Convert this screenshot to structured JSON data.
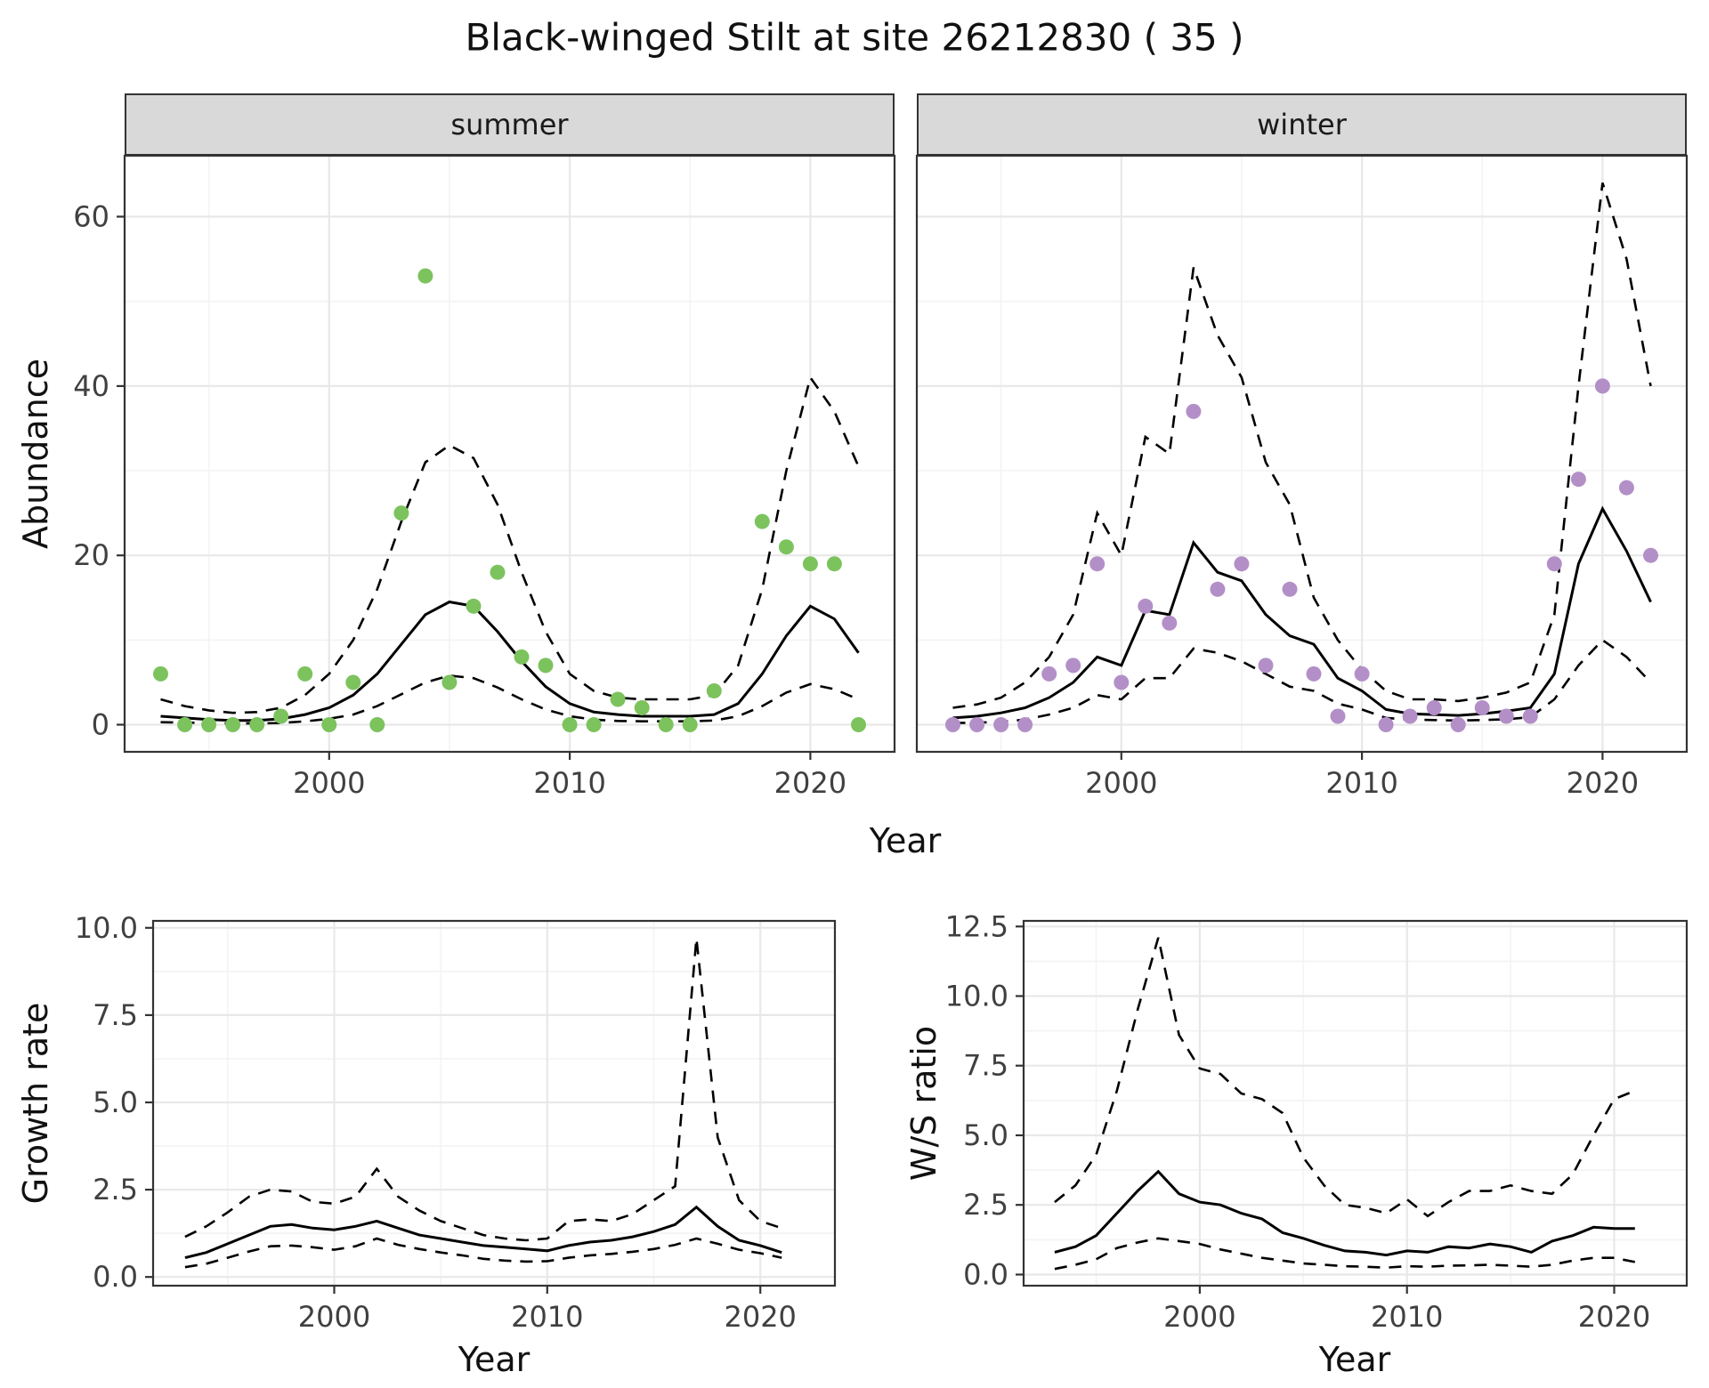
{
  "title": "Black-winged Stilt at site 26212830 ( 35 )",
  "colors": {
    "line": "#000000",
    "strip_bg": "#d9d9d9",
    "strip_border": "#333333",
    "panel_border": "#333333",
    "grid_major": "#e8e8e8",
    "grid_minor": "#f3f3f3",
    "tick_mark": "#333333",
    "tick_text": "#404040",
    "summer_point": "#7cc35e",
    "winter_point": "#b38fc8"
  },
  "chart_data": [
    {
      "id": "summer",
      "type": "scatter",
      "facet_label": "summer",
      "xlabel": "Year",
      "ylabel": "Abundance",
      "point_color": "#7cc35e",
      "xlim": [
        1991.5,
        2023.5
      ],
      "ylim": [
        -3.2,
        67.2
      ],
      "xticks": [
        2000,
        2010,
        2020
      ],
      "xtick_labels": [
        "2000",
        "2010",
        "2020"
      ],
      "xminor": [
        1995,
        2005,
        2015
      ],
      "yticks": [
        0,
        20,
        40,
        60
      ],
      "ytick_labels": [
        "0",
        "20",
        "40",
        "60"
      ],
      "yminor": [
        10,
        30,
        50
      ],
      "show_ytick_labels": true,
      "x": [
        1993,
        1994,
        1995,
        1996,
        1997,
        1998,
        1999,
        2000,
        2001,
        2002,
        2003,
        2004,
        2005,
        2006,
        2007,
        2008,
        2009,
        2010,
        2011,
        2012,
        2013,
        2014,
        2015,
        2016,
        2017,
        2018,
        2019,
        2020,
        2021,
        2022
      ],
      "points": [
        6,
        0,
        0,
        0,
        0,
        1,
        6,
        0,
        5,
        0,
        25,
        53,
        5,
        14,
        18,
        8,
        7,
        0,
        0,
        3,
        2,
        0,
        0,
        4,
        null,
        24,
        21,
        19,
        19,
        0
      ],
      "fit": [
        1.0,
        0.8,
        0.6,
        0.5,
        0.5,
        0.7,
        1.2,
        2.0,
        3.5,
        6.0,
        9.5,
        13.0,
        14.5,
        14.0,
        11.0,
        7.5,
        4.5,
        2.5,
        1.5,
        1.2,
        1.0,
        1.0,
        1.0,
        1.2,
        2.5,
        6.0,
        10.5,
        14.0,
        12.5,
        8.5
      ],
      "upper": [
        3.0,
        2.2,
        1.7,
        1.4,
        1.5,
        2.0,
        3.5,
        6.0,
        10.0,
        16.0,
        24.0,
        31.0,
        33.0,
        31.5,
        26.0,
        18.0,
        11.0,
        6.0,
        4.0,
        3.2,
        3.0,
        3.0,
        3.0,
        3.5,
        7.0,
        16.0,
        30.0,
        41.0,
        37.0,
        30.5
      ],
      "lower": [
        0.3,
        0.25,
        0.2,
        0.15,
        0.15,
        0.2,
        0.4,
        0.7,
        1.2,
        2.2,
        3.6,
        5.0,
        5.8,
        5.5,
        4.4,
        3.0,
        1.8,
        1.0,
        0.6,
        0.45,
        0.4,
        0.4,
        0.4,
        0.5,
        1.0,
        2.2,
        3.8,
        4.8,
        4.2,
        3.0
      ]
    },
    {
      "id": "winter",
      "type": "scatter",
      "facet_label": "winter",
      "point_color": "#b38fc8",
      "xlim": [
        1991.5,
        2023.5
      ],
      "ylim": [
        -3.2,
        67.2
      ],
      "xticks": [
        2000,
        2010,
        2020
      ],
      "xtick_labels": [
        "2000",
        "2010",
        "2020"
      ],
      "xminor": [
        1995,
        2005,
        2015
      ],
      "yticks": [
        0,
        20,
        40,
        60
      ],
      "ytick_labels": [
        "0",
        "20",
        "40",
        "60"
      ],
      "yminor": [
        10,
        30,
        50
      ],
      "show_ytick_labels": false,
      "x": [
        1993,
        1994,
        1995,
        1996,
        1997,
        1998,
        1999,
        2000,
        2001,
        2002,
        2003,
        2004,
        2005,
        2006,
        2007,
        2008,
        2009,
        2010,
        2011,
        2012,
        2013,
        2014,
        2015,
        2016,
        2017,
        2018,
        2019,
        2020,
        2021,
        2022
      ],
      "points": [
        0,
        0,
        0,
        0,
        6,
        7,
        19,
        5,
        14,
        12,
        37,
        16,
        19,
        7,
        16,
        6,
        1,
        6,
        0,
        1,
        2,
        0,
        2,
        1,
        1,
        19,
        29,
        40,
        28,
        20
      ],
      "fit": [
        0.8,
        1.0,
        1.4,
        2.0,
        3.2,
        5.0,
        8.0,
        7.0,
        13.5,
        13.0,
        21.5,
        18.0,
        17.0,
        13.0,
        10.5,
        9.5,
        5.5,
        4.0,
        1.8,
        1.3,
        1.2,
        1.1,
        1.3,
        1.6,
        2.0,
        6.0,
        19.0,
        25.5,
        20.5,
        14.5
      ],
      "upper": [
        2.0,
        2.4,
        3.2,
        5.0,
        8.0,
        13.0,
        25.0,
        20.0,
        34.0,
        32.0,
        54.0,
        46.0,
        41.0,
        31.0,
        26.0,
        15.0,
        10.0,
        6.5,
        4.0,
        3.0,
        3.0,
        2.8,
        3.2,
        3.8,
        5.0,
        13.0,
        40.0,
        64.0,
        55.0,
        40.0
      ],
      "lower": [
        0.2,
        0.25,
        0.35,
        0.6,
        1.2,
        2.0,
        3.5,
        3.0,
        5.5,
        5.5,
        9.0,
        8.5,
        7.5,
        6.0,
        4.5,
        4.0,
        2.5,
        1.8,
        0.8,
        0.6,
        0.55,
        0.5,
        0.55,
        0.65,
        0.9,
        3.0,
        7.0,
        10.0,
        8.0,
        5.0
      ]
    },
    {
      "id": "growth",
      "type": "line",
      "xlabel": "Year",
      "ylabel": "Growth rate",
      "xlim": [
        1991.5,
        2023.5
      ],
      "ylim": [
        -0.25,
        10.2
      ],
      "xticks": [
        2000,
        2010,
        2020
      ],
      "xtick_labels": [
        "2000",
        "2010",
        "2020"
      ],
      "xminor": [
        1995,
        2005,
        2015
      ],
      "yticks": [
        0,
        2.5,
        5,
        7.5,
        10
      ],
      "ytick_labels": [
        "0.0",
        "2.5",
        "5.0",
        "7.5",
        "10.0"
      ],
      "yminor": [
        1.25,
        3.75,
        6.25,
        8.75
      ],
      "show_ytick_labels": true,
      "x": [
        1993,
        1994,
        1995,
        1996,
        1997,
        1998,
        1999,
        2000,
        2001,
        2002,
        2003,
        2004,
        2005,
        2006,
        2007,
        2008,
        2009,
        2010,
        2011,
        2012,
        2013,
        2014,
        2015,
        2016,
        2017,
        2018,
        2019,
        2020,
        2021
      ],
      "fit": [
        0.55,
        0.7,
        0.95,
        1.2,
        1.45,
        1.5,
        1.4,
        1.35,
        1.45,
        1.6,
        1.4,
        1.2,
        1.1,
        1.0,
        0.9,
        0.85,
        0.8,
        0.75,
        0.9,
        1.0,
        1.05,
        1.15,
        1.3,
        1.5,
        2.0,
        1.45,
        1.05,
        0.9,
        0.7
      ],
      "upper": [
        1.15,
        1.45,
        1.85,
        2.3,
        2.5,
        2.45,
        2.15,
        2.1,
        2.3,
        3.1,
        2.3,
        1.9,
        1.6,
        1.4,
        1.2,
        1.1,
        1.05,
        1.1,
        1.6,
        1.65,
        1.6,
        1.8,
        2.2,
        2.6,
        9.7,
        4.0,
        2.2,
        1.6,
        1.4
      ],
      "lower": [
        0.28,
        0.38,
        0.55,
        0.73,
        0.88,
        0.9,
        0.85,
        0.78,
        0.88,
        1.1,
        0.92,
        0.8,
        0.7,
        0.62,
        0.52,
        0.47,
        0.44,
        0.45,
        0.55,
        0.62,
        0.66,
        0.72,
        0.8,
        0.92,
        1.1,
        0.95,
        0.78,
        0.68,
        0.55
      ]
    },
    {
      "id": "ws",
      "type": "line",
      "xlabel": "Year",
      "ylabel": "W/S ratio",
      "xlim": [
        1991.5,
        2023.5
      ],
      "ylim": [
        -0.4,
        12.7
      ],
      "xticks": [
        2000,
        2010,
        2020
      ],
      "xtick_labels": [
        "2000",
        "2010",
        "2020"
      ],
      "xminor": [
        1995,
        2005,
        2015
      ],
      "yticks": [
        0,
        2.5,
        5,
        7.5,
        10,
        12.5
      ],
      "ytick_labels": [
        "0.0",
        "2.5",
        "5.0",
        "7.5",
        "10.0",
        "12.5"
      ],
      "yminor": [
        1.25,
        3.75,
        6.25,
        8.75,
        11.25
      ],
      "show_ytick_labels": true,
      "x": [
        1993,
        1994,
        1995,
        1996,
        1997,
        1998,
        1999,
        2000,
        2001,
        2002,
        2003,
        2004,
        2005,
        2006,
        2007,
        2008,
        2009,
        2010,
        2011,
        2012,
        2013,
        2014,
        2015,
        2016,
        2017,
        2018,
        2019,
        2020,
        2021
      ],
      "fit": [
        0.8,
        1.0,
        1.4,
        2.2,
        3.0,
        3.7,
        2.9,
        2.6,
        2.5,
        2.2,
        2.0,
        1.5,
        1.3,
        1.05,
        0.85,
        0.8,
        0.7,
        0.85,
        0.8,
        1.0,
        0.95,
        1.1,
        1.0,
        0.8,
        1.2,
        1.4,
        1.7,
        1.65,
        1.65
      ],
      "upper": [
        2.6,
        3.2,
        4.3,
        6.6,
        9.5,
        12.1,
        8.6,
        7.4,
        7.2,
        6.5,
        6.3,
        5.8,
        4.2,
        3.2,
        2.5,
        2.4,
        2.2,
        2.7,
        2.1,
        2.6,
        3.0,
        3.0,
        3.2,
        3.0,
        2.9,
        3.6,
        5.0,
        6.3,
        6.6
      ],
      "lower": [
        0.2,
        0.35,
        0.55,
        0.95,
        1.15,
        1.3,
        1.2,
        1.1,
        0.9,
        0.75,
        0.6,
        0.5,
        0.4,
        0.35,
        0.3,
        0.28,
        0.25,
        0.3,
        0.28,
        0.32,
        0.33,
        0.35,
        0.32,
        0.28,
        0.35,
        0.5,
        0.6,
        0.6,
        0.45
      ]
    }
  ]
}
